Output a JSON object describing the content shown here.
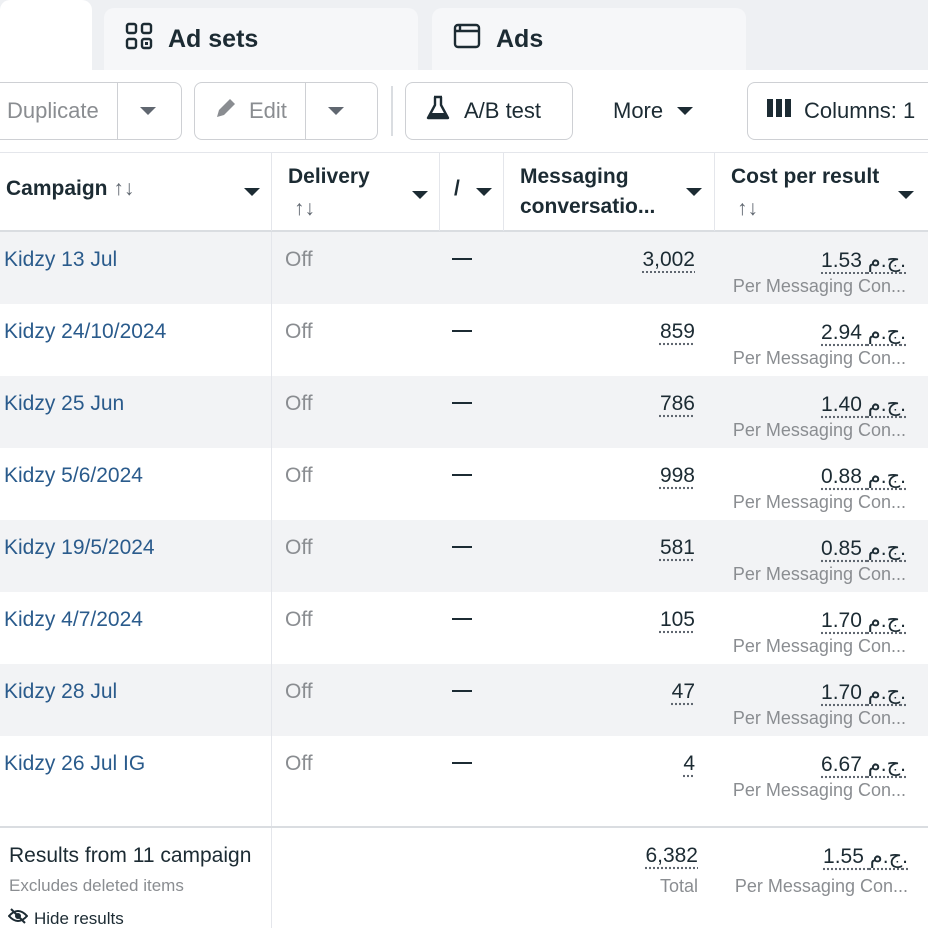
{
  "tabs": [
    {
      "label": "",
      "icon": "campaigns-icon"
    },
    {
      "label": "Ad sets",
      "icon": "ad-sets-icon"
    },
    {
      "label": "Ads",
      "icon": "ads-icon"
    }
  ],
  "toolbar": {
    "duplicate_label": "Duplicate",
    "edit_label": "Edit",
    "ab_test_label": "A/B test",
    "more_label": "More",
    "columns_label": "Columns: 1"
  },
  "columns": {
    "campaign": "Campaign",
    "delivery": "Delivery",
    "attribution": "/",
    "messaging_line1": "Messaging",
    "messaging_line2": "conversatio...",
    "cost_per_result": "Cost per result",
    "sort_glyph": "↑↓"
  },
  "rows": [
    {
      "campaign": "Kidzy 13 Jul",
      "delivery": "Off",
      "messaging": "3,002",
      "cost": "1.53 ج.م.",
      "cost_sub": "Per Messaging Con..."
    },
    {
      "campaign": "Kidzy 24/10/2024",
      "delivery": "Off",
      "messaging": "859",
      "cost": "2.94 ج.م.",
      "cost_sub": "Per Messaging Con..."
    },
    {
      "campaign": "Kidzy 25 Jun",
      "delivery": "Off",
      "messaging": "786",
      "cost": "1.40 ج.م.",
      "cost_sub": "Per Messaging Con..."
    },
    {
      "campaign": "Kidzy 5/6/2024",
      "delivery": "Off",
      "messaging": "998",
      "cost": "0.88 ج.م.",
      "cost_sub": "Per Messaging Con..."
    },
    {
      "campaign": "Kidzy 19/5/2024",
      "delivery": "Off",
      "messaging": "581",
      "cost": "0.85 ج.م.",
      "cost_sub": "Per Messaging Con..."
    },
    {
      "campaign": "Kidzy 4/7/2024",
      "delivery": "Off",
      "messaging": "105",
      "cost": "1.70 ج.م.",
      "cost_sub": "Per Messaging Con..."
    },
    {
      "campaign": "Kidzy 28 Jul",
      "delivery": "Off",
      "messaging": "47",
      "cost": "1.70 ج.م.",
      "cost_sub": "Per Messaging Con..."
    },
    {
      "campaign": "Kidzy 26 Jul IG",
      "delivery": "Off",
      "messaging": "4",
      "cost": "6.67 ج.م.",
      "cost_sub": "Per Messaging Con..."
    }
  ],
  "footer": {
    "results_label": "Results from 11 campaign",
    "excludes_label": "Excludes deleted items",
    "hide_label": "Hide results",
    "total_messaging": "6,382",
    "total_label": "Total",
    "total_cost": "1.55 ج.م.",
    "total_cost_sub": "Per Messaging Con..."
  },
  "colors": {
    "link": "#2a5b8c",
    "muted": "#8a8d91",
    "row_alt": "#f2f3f5"
  }
}
